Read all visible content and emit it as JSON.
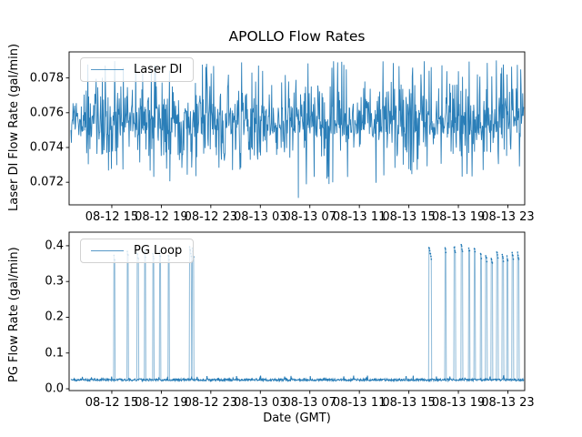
{
  "figure": {
    "title": "APOLLO Flow Rates",
    "background": "#ffffff",
    "accent_color": "#1f77b4"
  },
  "chart_data": [
    {
      "type": "line",
      "name": "Laser DI",
      "ylabel": "Laser DI Flow Rate (gal/min)",
      "legend": {
        "label": "Laser DI",
        "location": "upper left"
      },
      "color": "#1f77b4",
      "ylim": [
        0.0707,
        0.0795
      ],
      "y_ticks": [
        {
          "value": 0.072,
          "label": "0.072"
        },
        {
          "value": 0.074,
          "label": "0.074"
        },
        {
          "value": 0.076,
          "label": "0.076"
        },
        {
          "value": 0.078,
          "label": "0.078"
        }
      ],
      "x_hours_origin": "08-12 00:00",
      "xlim_hours": [
        11.55,
        48.36
      ],
      "x_ticks": [
        {
          "hour": 15,
          "label": "08-12 15"
        },
        {
          "hour": 19,
          "label": "08-12 19"
        },
        {
          "hour": 23,
          "label": "08-12 23"
        },
        {
          "hour": 27,
          "label": "08-13 03"
        },
        {
          "hour": 31,
          "label": "08-13 07"
        },
        {
          "hour": 35,
          "label": "08-13 11"
        },
        {
          "hour": 39,
          "label": "08-13 15"
        },
        {
          "hour": 43,
          "label": "08-13 19"
        },
        {
          "hour": 47,
          "label": "08-13 23"
        }
      ],
      "data_summary": {
        "x_start_hour": 11.7,
        "x_end_hour": 48.3,
        "n_points": 1100,
        "mean": 0.0755,
        "min": 0.0711,
        "max": 0.0793,
        "levels": {
          "band": [
            0.0747,
            0.0763
          ],
          "up_mid": [
            0.0763,
            0.0776
          ],
          "up_high": [
            0.0776,
            0.079
          ],
          "up_max": [
            0.079,
            0.0793
          ],
          "down_mid": [
            0.0735,
            0.0747
          ],
          "down_low": [
            0.0722,
            0.0735
          ],
          "down_min": [
            0.0715,
            0.0722
          ]
        },
        "level_probs": [
          0.58,
          0.15,
          0.07,
          0.007,
          0.13,
          0.055,
          0.008
        ],
        "extreme_points": [
          {
            "t": 30.07,
            "v": 0.0711
          },
          {
            "t": 32.55,
            "v": 0.0719
          },
          {
            "t": 32.85,
            "v": 0.072
          }
        ]
      }
    },
    {
      "type": "line",
      "name": "PG Loop",
      "ylabel": "PG Flow Rate (gal/min)",
      "xlabel": "Date (GMT)",
      "legend": {
        "label": "PG Loop",
        "location": "upper left"
      },
      "color": "#1f77b4",
      "ylim": [
        -0.005,
        0.438
      ],
      "y_ticks": [
        {
          "value": 0.0,
          "label": "0.0"
        },
        {
          "value": 0.1,
          "label": "0.1"
        },
        {
          "value": 0.2,
          "label": "0.2"
        },
        {
          "value": 0.3,
          "label": "0.3"
        },
        {
          "value": 0.4,
          "label": "0.4"
        }
      ],
      "data_summary": {
        "x_start_hour": 11.7,
        "x_end_hour": 48.3,
        "n_points": 1150,
        "baseline": 0.025,
        "baseline_noise": 0.006,
        "spikes": [
          {
            "t": 15.2,
            "h": 0.375,
            "w": 0.1
          },
          {
            "t": 16.3,
            "h": 0.385,
            "w": 0.1
          },
          {
            "t": 17.1,
            "h": 0.38,
            "w": 0.1
          },
          {
            "t": 17.7,
            "h": 0.385,
            "w": 0.1
          },
          {
            "t": 18.35,
            "h": 0.38,
            "w": 0.1
          },
          {
            "t": 18.9,
            "h": 0.385,
            "w": 0.1
          },
          {
            "t": 19.6,
            "h": 0.38,
            "w": 0.1
          },
          {
            "t": 21.35,
            "h": 0.4,
            "w": 0.14,
            "decay": 0.03
          },
          {
            "t": 21.55,
            "h": 0.395,
            "w": 0.12,
            "decay": 0.03
          },
          {
            "t": 40.72,
            "h": 0.4,
            "w": 0.22,
            "decay": 0.038
          },
          {
            "t": 41.96,
            "h": 0.4,
            "w": 0.12
          },
          {
            "t": 42.7,
            "h": 0.402,
            "w": 0.12
          },
          {
            "t": 43.29,
            "h": 0.405,
            "w": 0.12
          },
          {
            "t": 43.87,
            "h": 0.4,
            "w": 0.12
          },
          {
            "t": 44.32,
            "h": 0.397,
            "w": 0.12
          },
          {
            "t": 44.83,
            "h": 0.382,
            "w": 0.12
          },
          {
            "t": 45.27,
            "h": 0.374,
            "w": 0.12
          },
          {
            "t": 45.71,
            "h": 0.367,
            "w": 0.12
          },
          {
            "t": 46.15,
            "h": 0.385,
            "w": 0.12
          },
          {
            "t": 46.6,
            "h": 0.377,
            "w": 0.12
          },
          {
            "t": 46.96,
            "h": 0.374,
            "w": 0.12
          },
          {
            "t": 47.4,
            "h": 0.38,
            "w": 0.12
          },
          {
            "t": 47.85,
            "h": 0.38,
            "w": 0.12
          }
        ]
      }
    }
  ]
}
